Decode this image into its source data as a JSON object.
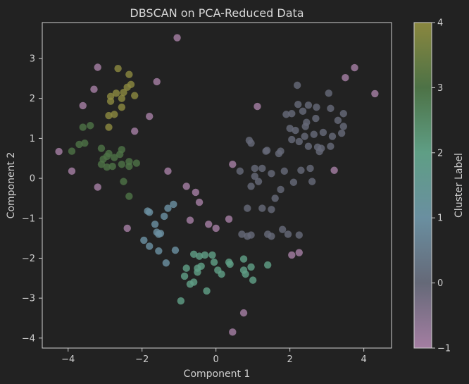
{
  "chart_data": {
    "type": "scatter",
    "title": "DBSCAN on PCA-Reduced Data",
    "xlabel": "Component 1",
    "ylabel": "Component 2",
    "xlim": [
      -4.7,
      4.75
    ],
    "ylim": [
      -4.25,
      3.9
    ],
    "xticks": [
      "−4",
      "−2",
      "0",
      "2",
      "4"
    ],
    "xtick_values": [
      -4,
      -2,
      0,
      2,
      4
    ],
    "yticks": [
      "3",
      "2",
      "1",
      "0",
      "−1",
      "−2",
      "−3",
      "−4"
    ],
    "ytick_values": [
      3,
      2,
      1,
      0,
      -1,
      -2,
      -3,
      -4
    ],
    "grid": false,
    "colorbar": {
      "label": "Cluster Label",
      "range": [
        -1,
        4
      ],
      "ticks": [
        "4",
        "3",
        "2",
        "1",
        "0",
        "−1"
      ],
      "tick_values": [
        4,
        3,
        2,
        1,
        0,
        -1
      ],
      "colors": {
        "-1": "#a47ea2",
        "0": "#656978",
        "1": "#6a8fa0",
        "2": "#5f9e85",
        "3": "#4d7246",
        "4": "#8a873f"
      }
    },
    "points": [
      {
        "x": -4.25,
        "y": 0.67,
        "label": -1
      },
      {
        "x": -3.9,
        "y": 0.18,
        "label": -1
      },
      {
        "x": -3.6,
        "y": 1.82,
        "label": -1
      },
      {
        "x": -3.3,
        "y": 2.23,
        "label": -1
      },
      {
        "x": -3.2,
        "y": 2.78,
        "label": -1
      },
      {
        "x": -3.2,
        "y": -0.22,
        "label": -1
      },
      {
        "x": -2.2,
        "y": 1.18,
        "label": -1
      },
      {
        "x": -2.4,
        "y": -1.25,
        "label": -1
      },
      {
        "x": -1.8,
        "y": 1.55,
        "label": -1
      },
      {
        "x": -1.6,
        "y": 2.42,
        "label": -1
      },
      {
        "x": -1.3,
        "y": 0.18,
        "label": -1
      },
      {
        "x": -1.05,
        "y": 3.52,
        "label": -1
      },
      {
        "x": -0.8,
        "y": -0.2,
        "label": -1
      },
      {
        "x": -0.7,
        "y": -1.05,
        "label": -1
      },
      {
        "x": -0.55,
        "y": -0.35,
        "label": -1
      },
      {
        "x": -0.45,
        "y": -0.6,
        "label": -1
      },
      {
        "x": -0.2,
        "y": -1.15,
        "label": -1
      },
      {
        "x": 0.0,
        "y": -1.25,
        "label": -1
      },
      {
        "x": 0.35,
        "y": -1.02,
        "label": -1
      },
      {
        "x": 0.45,
        "y": 0.35,
        "label": -1
      },
      {
        "x": 0.45,
        "y": -3.85,
        "label": -1
      },
      {
        "x": 0.75,
        "y": -3.37,
        "label": -1
      },
      {
        "x": 1.12,
        "y": 1.8,
        "label": -1
      },
      {
        "x": 2.05,
        "y": -1.92,
        "label": -1
      },
      {
        "x": 2.25,
        "y": -1.86,
        "label": -1
      },
      {
        "x": 3.2,
        "y": 0.2,
        "label": -1
      },
      {
        "x": 3.5,
        "y": 2.52,
        "label": -1
      },
      {
        "x": 3.75,
        "y": 2.77,
        "label": -1
      },
      {
        "x": 4.3,
        "y": 2.12,
        "label": -1
      },
      {
        "x": 0.65,
        "y": 0.18,
        "label": 0
      },
      {
        "x": 0.9,
        "y": 0.95,
        "label": 0
      },
      {
        "x": 0.95,
        "y": 0.88,
        "label": 0
      },
      {
        "x": 0.85,
        "y": -0.75,
        "label": 0
      },
      {
        "x": 0.95,
        "y": -0.2,
        "label": 0
      },
      {
        "x": 1.05,
        "y": 0.25,
        "label": 0
      },
      {
        "x": 1.05,
        "y": 0.05,
        "label": 0
      },
      {
        "x": 1.15,
        "y": -0.08,
        "label": 0
      },
      {
        "x": 1.25,
        "y": 0.25,
        "label": 0
      },
      {
        "x": 1.25,
        "y": -0.75,
        "label": 0
      },
      {
        "x": 1.35,
        "y": 0.68,
        "label": 0
      },
      {
        "x": 1.38,
        "y": 0.7,
        "label": 0
      },
      {
        "x": 1.5,
        "y": 0.12,
        "label": 0
      },
      {
        "x": 1.5,
        "y": -0.78,
        "label": 0
      },
      {
        "x": 1.6,
        "y": -0.5,
        "label": 0
      },
      {
        "x": 1.7,
        "y": 0.62,
        "label": 0
      },
      {
        "x": 1.75,
        "y": 0.68,
        "label": 0
      },
      {
        "x": 1.75,
        "y": -0.28,
        "label": 0
      },
      {
        "x": 1.8,
        "y": -1.28,
        "label": 0
      },
      {
        "x": 1.85,
        "y": 0.18,
        "label": 0
      },
      {
        "x": 1.9,
        "y": 1.6,
        "label": 0
      },
      {
        "x": 1.95,
        "y": -1.4,
        "label": 0
      },
      {
        "x": 2.05,
        "y": 0.97,
        "label": 0
      },
      {
        "x": 2.05,
        "y": 1.62,
        "label": 0
      },
      {
        "x": 2.0,
        "y": 1.25,
        "label": 0
      },
      {
        "x": 2.1,
        "y": -0.1,
        "label": 0
      },
      {
        "x": 2.15,
        "y": 1.2,
        "label": 0
      },
      {
        "x": 2.2,
        "y": 2.33,
        "label": 0
      },
      {
        "x": 2.22,
        "y": 1.85,
        "label": 0
      },
      {
        "x": 2.25,
        "y": 0.92,
        "label": 0
      },
      {
        "x": 2.25,
        "y": -1.42,
        "label": 0
      },
      {
        "x": 2.3,
        "y": 0.2,
        "label": 0
      },
      {
        "x": 2.35,
        "y": 1.68,
        "label": 0
      },
      {
        "x": 2.4,
        "y": 1.05,
        "label": 0
      },
      {
        "x": 2.42,
        "y": 1.3,
        "label": 0
      },
      {
        "x": 2.45,
        "y": 1.4,
        "label": 0
      },
      {
        "x": 2.5,
        "y": 1.83,
        "label": 0
      },
      {
        "x": 2.5,
        "y": 0.8,
        "label": 0
      },
      {
        "x": 2.55,
        "y": 0.25,
        "label": 0
      },
      {
        "x": 2.6,
        "y": -0.08,
        "label": 0
      },
      {
        "x": 2.65,
        "y": 1.1,
        "label": 0
      },
      {
        "x": 2.7,
        "y": 1.5,
        "label": 0
      },
      {
        "x": 2.72,
        "y": 1.78,
        "label": 0
      },
      {
        "x": 2.75,
        "y": 0.78,
        "label": 0
      },
      {
        "x": 2.8,
        "y": 0.67,
        "label": 0
      },
      {
        "x": 2.85,
        "y": 0.75,
        "label": 0
      },
      {
        "x": 2.9,
        "y": 1.15,
        "label": 0
      },
      {
        "x": 3.05,
        "y": 2.13,
        "label": 0
      },
      {
        "x": 3.1,
        "y": 1.75,
        "label": 0
      },
      {
        "x": 3.1,
        "y": 0.8,
        "label": 0
      },
      {
        "x": 3.15,
        "y": 1.05,
        "label": 0
      },
      {
        "x": 3.3,
        "y": 1.45,
        "label": 0
      },
      {
        "x": 3.45,
        "y": 1.3,
        "label": 0
      },
      {
        "x": 3.45,
        "y": 1.62,
        "label": 0
      },
      {
        "x": 3.4,
        "y": 1.13,
        "label": 0
      },
      {
        "x": 0.7,
        "y": -1.4,
        "label": 0
      },
      {
        "x": 0.85,
        "y": -1.45,
        "label": 0
      },
      {
        "x": 0.95,
        "y": -1.42,
        "label": 0
      },
      {
        "x": 1.4,
        "y": -1.4,
        "label": 0
      },
      {
        "x": 1.5,
        "y": -1.45,
        "label": 0
      },
      {
        "x": -1.4,
        "y": -0.95,
        "label": 1
      },
      {
        "x": -1.3,
        "y": -0.75,
        "label": 1
      },
      {
        "x": -1.15,
        "y": -0.65,
        "label": 1
      },
      {
        "x": -1.85,
        "y": -0.82,
        "label": 1
      },
      {
        "x": -1.8,
        "y": -0.85,
        "label": 1
      },
      {
        "x": -1.65,
        "y": -1.15,
        "label": 1
      },
      {
        "x": -1.6,
        "y": -1.35,
        "label": 1
      },
      {
        "x": -1.55,
        "y": -1.4,
        "label": 1
      },
      {
        "x": -1.5,
        "y": -1.38,
        "label": 1
      },
      {
        "x": -1.95,
        "y": -1.55,
        "label": 1
      },
      {
        "x": -1.8,
        "y": -1.7,
        "label": 1
      },
      {
        "x": -1.55,
        "y": -1.82,
        "label": 1
      },
      {
        "x": -1.35,
        "y": -2.12,
        "label": 1
      },
      {
        "x": -1.1,
        "y": -1.8,
        "label": 1
      },
      {
        "x": -0.6,
        "y": -1.9,
        "label": 2
      },
      {
        "x": -0.45,
        "y": -1.95,
        "label": 2
      },
      {
        "x": -0.3,
        "y": -1.92,
        "label": 2
      },
      {
        "x": -0.1,
        "y": -1.92,
        "label": 2
      },
      {
        "x": -0.5,
        "y": -2.25,
        "label": 2
      },
      {
        "x": -0.5,
        "y": -2.35,
        "label": 2
      },
      {
        "x": -0.4,
        "y": -2.2,
        "label": 2
      },
      {
        "x": -0.8,
        "y": -2.25,
        "label": 2
      },
      {
        "x": -0.85,
        "y": -2.45,
        "label": 2
      },
      {
        "x": -0.7,
        "y": -2.65,
        "label": 2
      },
      {
        "x": -0.6,
        "y": -2.6,
        "label": 2
      },
      {
        "x": -0.25,
        "y": -2.82,
        "label": 2
      },
      {
        "x": -0.95,
        "y": -3.07,
        "label": 2
      },
      {
        "x": -0.05,
        "y": -2.1,
        "label": 2
      },
      {
        "x": 0.05,
        "y": -2.3,
        "label": 2
      },
      {
        "x": 0.15,
        "y": -2.4,
        "label": 2
      },
      {
        "x": 0.35,
        "y": -2.1,
        "label": 2
      },
      {
        "x": 0.38,
        "y": -2.15,
        "label": 2
      },
      {
        "x": 0.75,
        "y": -2.02,
        "label": 2
      },
      {
        "x": 0.75,
        "y": -2.3,
        "label": 2
      },
      {
        "x": 0.8,
        "y": -2.4,
        "label": 2
      },
      {
        "x": 0.95,
        "y": -2.22,
        "label": 2
      },
      {
        "x": 1.0,
        "y": -2.55,
        "label": 2
      },
      {
        "x": 1.4,
        "y": -2.17,
        "label": 2
      },
      {
        "x": -3.7,
        "y": 0.85,
        "label": 3
      },
      {
        "x": -3.55,
        "y": 0.88,
        "label": 3
      },
      {
        "x": -3.9,
        "y": 0.68,
        "label": 3
      },
      {
        "x": -3.1,
        "y": 0.75,
        "label": 3
      },
      {
        "x": -2.95,
        "y": 0.55,
        "label": 3
      },
      {
        "x": -2.9,
        "y": 0.62,
        "label": 3
      },
      {
        "x": -3.05,
        "y": 0.48,
        "label": 3
      },
      {
        "x": -3.1,
        "y": 0.35,
        "label": 3
      },
      {
        "x": -2.95,
        "y": 0.28,
        "label": 3
      },
      {
        "x": -2.8,
        "y": 0.3,
        "label": 3
      },
      {
        "x": -2.75,
        "y": 0.52,
        "label": 3
      },
      {
        "x": -2.6,
        "y": 0.6,
        "label": 3
      },
      {
        "x": -2.55,
        "y": 0.72,
        "label": 3
      },
      {
        "x": -2.35,
        "y": 0.42,
        "label": 3
      },
      {
        "x": -2.35,
        "y": 0.3,
        "label": 3
      },
      {
        "x": -2.15,
        "y": 0.38,
        "label": 3
      },
      {
        "x": -2.55,
        "y": 0.35,
        "label": 3
      },
      {
        "x": -2.5,
        "y": -0.08,
        "label": 3
      },
      {
        "x": -2.35,
        "y": -0.45,
        "label": 3
      },
      {
        "x": -3.4,
        "y": 1.32,
        "label": 3
      },
      {
        "x": -3.6,
        "y": 1.28,
        "label": 3
      },
      {
        "x": -2.65,
        "y": 2.75,
        "label": 4
      },
      {
        "x": -2.35,
        "y": 2.6,
        "label": 4
      },
      {
        "x": -2.3,
        "y": 2.35,
        "label": 4
      },
      {
        "x": -2.4,
        "y": 2.28,
        "label": 4
      },
      {
        "x": -2.5,
        "y": 2.15,
        "label": 4
      },
      {
        "x": -2.2,
        "y": 2.07,
        "label": 4
      },
      {
        "x": -2.55,
        "y": 2.0,
        "label": 4
      },
      {
        "x": -2.7,
        "y": 2.13,
        "label": 4
      },
      {
        "x": -2.85,
        "y": 2.05,
        "label": 4
      },
      {
        "x": -2.85,
        "y": 1.93,
        "label": 4
      },
      {
        "x": -2.55,
        "y": 1.78,
        "label": 4
      },
      {
        "x": -2.75,
        "y": 1.6,
        "label": 4
      },
      {
        "x": -2.9,
        "y": 1.57,
        "label": 4
      },
      {
        "x": -2.9,
        "y": 1.28,
        "label": 4
      }
    ]
  }
}
